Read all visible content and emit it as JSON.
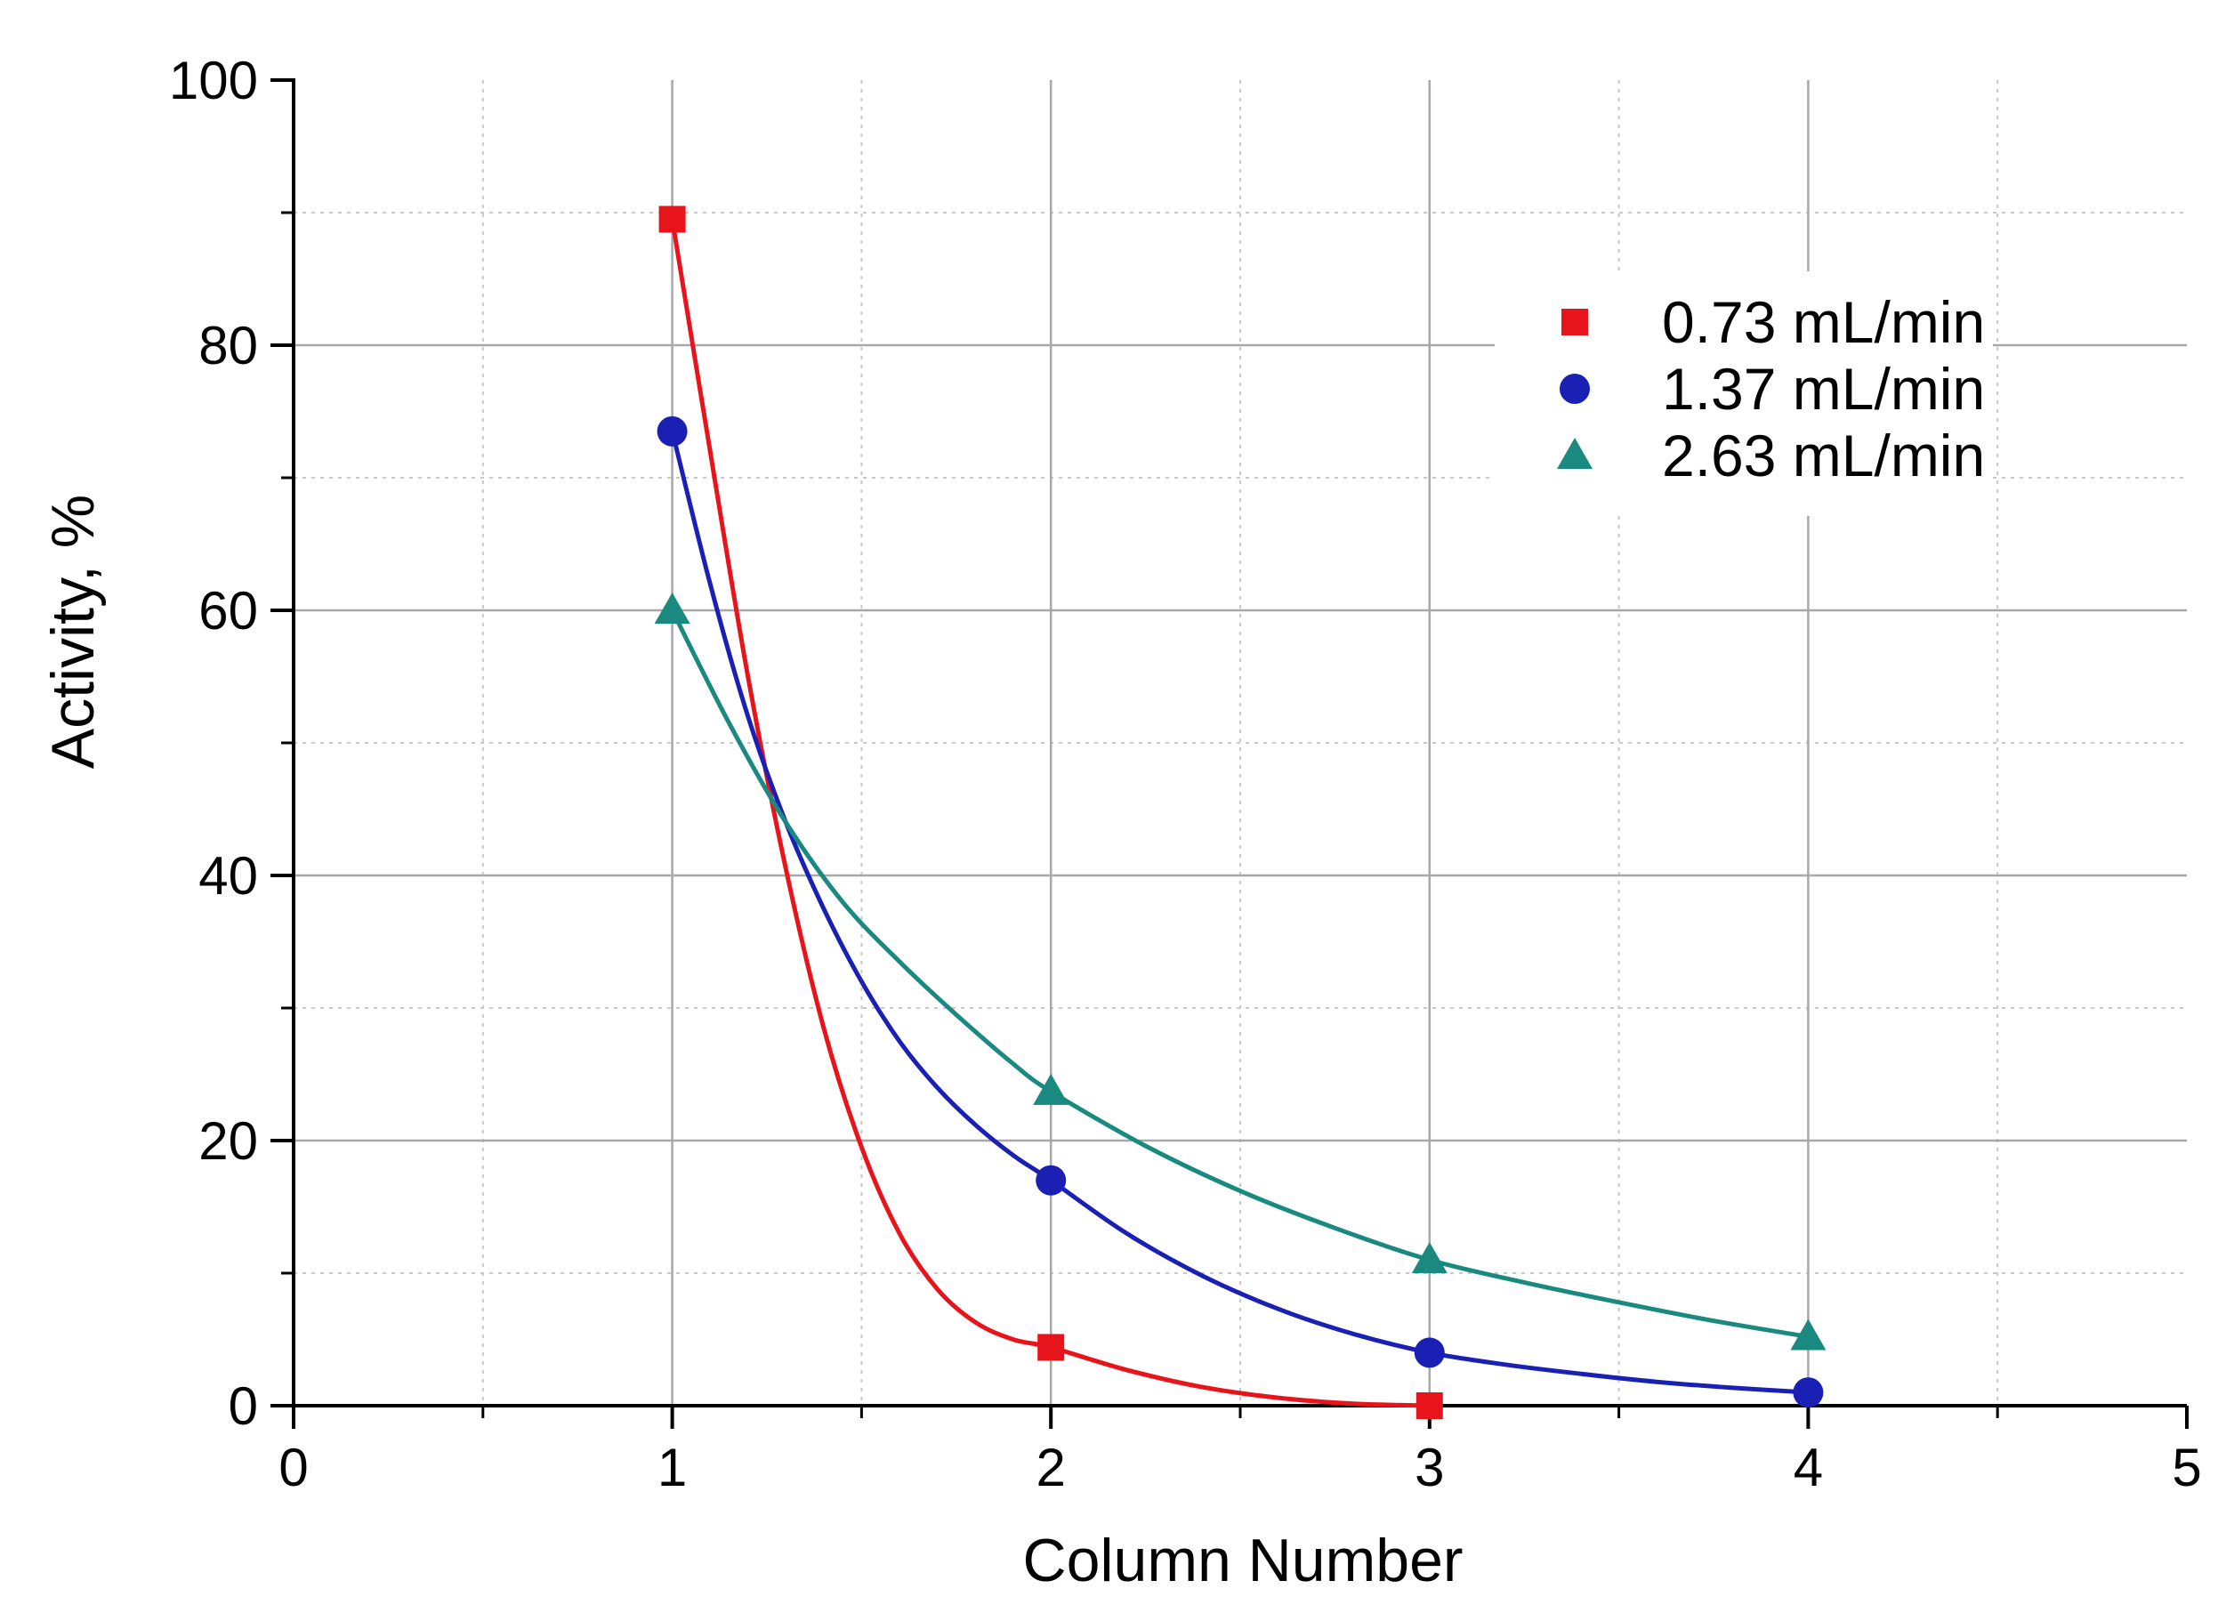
{
  "chart_data": {
    "type": "line",
    "title": "",
    "xlabel": "Column Number",
    "ylabel": "Activity, %",
    "xlim": [
      0,
      5
    ],
    "ylim": [
      0,
      100
    ],
    "xticks": [
      0,
      1,
      2,
      3,
      4,
      5
    ],
    "yticks": [
      0,
      20,
      40,
      60,
      80,
      100
    ],
    "grid": true,
    "legend_position": "top-right",
    "series": [
      {
        "name": "0.73 mL/min",
        "marker": "square",
        "color": "#e8141b",
        "x": [
          1,
          2,
          3
        ],
        "y": [
          89.5,
          4.4,
          0
        ],
        "curve": [
          [
            1,
            89.5
          ],
          [
            1.1,
            72
          ],
          [
            1.2,
            55
          ],
          [
            1.3,
            40.5
          ],
          [
            1.4,
            28.5
          ],
          [
            1.5,
            19.5
          ],
          [
            1.6,
            13
          ],
          [
            1.7,
            8.8
          ],
          [
            1.8,
            6.3
          ],
          [
            1.9,
            5
          ],
          [
            2,
            4.4
          ],
          [
            2.2,
            2.7
          ],
          [
            2.4,
            1.4
          ],
          [
            2.6,
            0.6
          ],
          [
            2.8,
            0.15
          ],
          [
            3,
            0
          ]
        ]
      },
      {
        "name": "1.37 mL/min",
        "marker": "circle",
        "color": "#1a20b4",
        "x": [
          1,
          2,
          3,
          4
        ],
        "y": [
          73.5,
          17,
          4,
          1
        ],
        "curve": [
          [
            1,
            73.5
          ],
          [
            1.1,
            62
          ],
          [
            1.2,
            52
          ],
          [
            1.3,
            44
          ],
          [
            1.4,
            37.5
          ],
          [
            1.5,
            32
          ],
          [
            1.6,
            27.5
          ],
          [
            1.7,
            24
          ],
          [
            1.8,
            21.2
          ],
          [
            1.9,
            18.9
          ],
          [
            2,
            17
          ],
          [
            2.2,
            13
          ],
          [
            2.4,
            9.8
          ],
          [
            2.6,
            7.3
          ],
          [
            2.8,
            5.4
          ],
          [
            3,
            4
          ],
          [
            3.2,
            3.1
          ],
          [
            3.4,
            2.4
          ],
          [
            3.6,
            1.8
          ],
          [
            3.8,
            1.35
          ],
          [
            4,
            1
          ]
        ]
      },
      {
        "name": "2.63 mL/min",
        "marker": "triangle",
        "color": "#1a8a80",
        "x": [
          1,
          2,
          3,
          4
        ],
        "y": [
          60,
          23.7,
          11,
          5.2
        ],
        "curve": [
          [
            1,
            60
          ],
          [
            1.15,
            51.5
          ],
          [
            1.3,
            44
          ],
          [
            1.45,
            38
          ],
          [
            1.6,
            33.5
          ],
          [
            1.75,
            29.5
          ],
          [
            1.9,
            25.8
          ],
          [
            2,
            23.7
          ],
          [
            2.25,
            19.6
          ],
          [
            2.5,
            16.2
          ],
          [
            2.75,
            13.4
          ],
          [
            3,
            11
          ],
          [
            3.25,
            9.3
          ],
          [
            3.5,
            7.8
          ],
          [
            3.75,
            6.4
          ],
          [
            4,
            5.2
          ]
        ]
      }
    ]
  }
}
